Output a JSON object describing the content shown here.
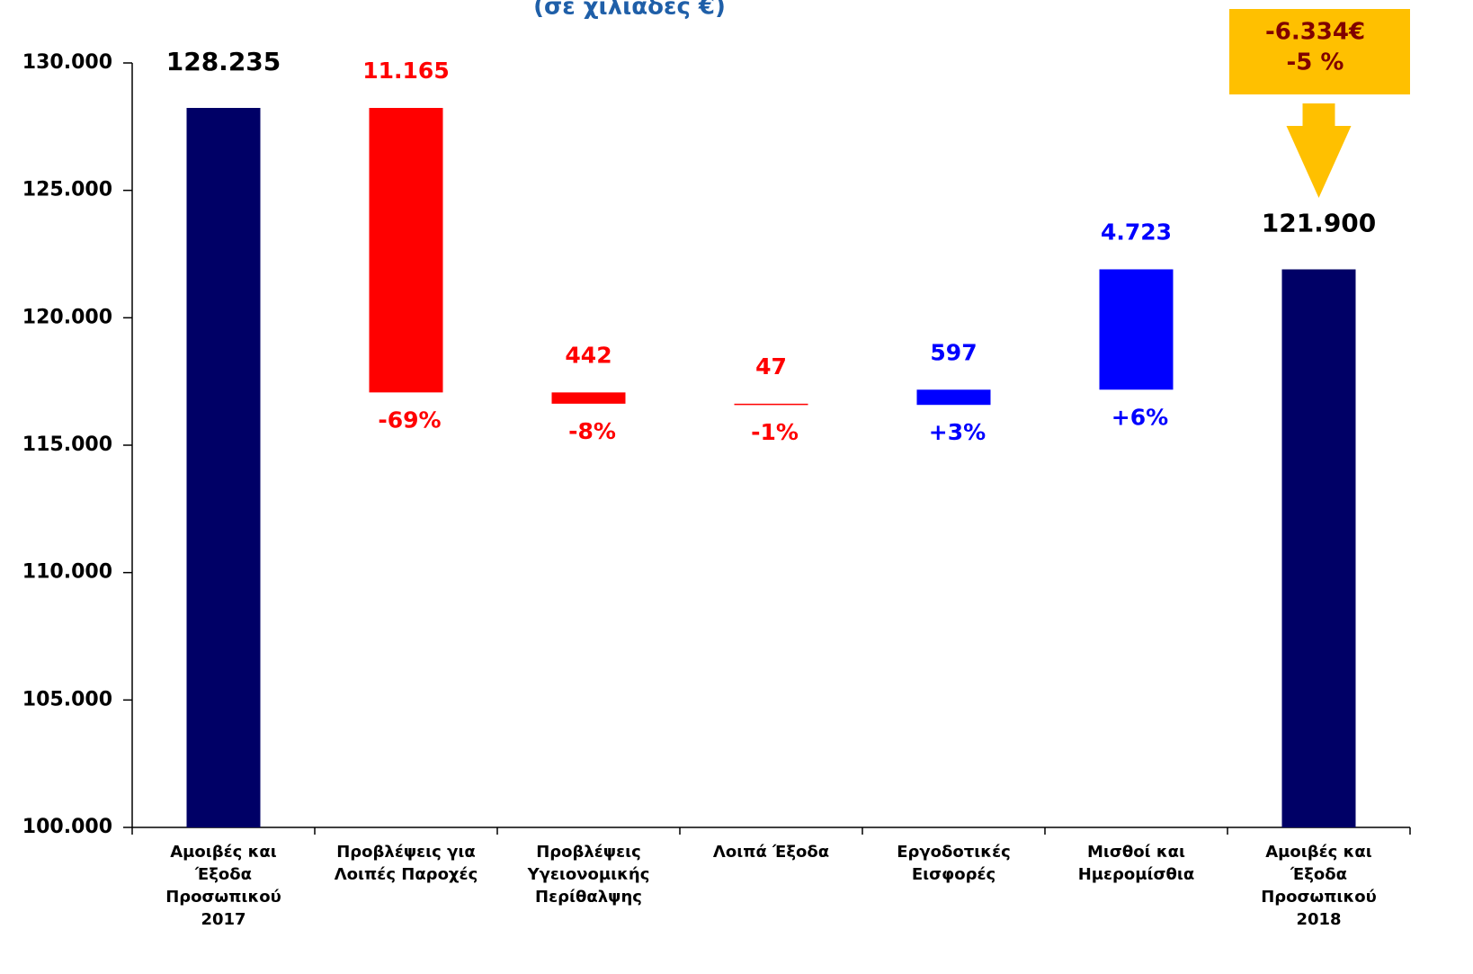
{
  "chart_data": {
    "type": "waterfall",
    "subtitle": "(σε χιλιάδες €)",
    "categories": [
      [
        "Αμοιβές και",
        "Έξοδα",
        "Προσωπικού",
        "2017"
      ],
      [
        "Προβλέψεις για",
        "Λοιπές Παροχές"
      ],
      [
        "Προβλέψεις",
        "Υγειονομικής",
        "Περίθαλψης"
      ],
      [
        "Λοιπά Έξοδα"
      ],
      [
        "Εργοδοτικές",
        "Εισφορές"
      ],
      [
        "Μισθοί και",
        "Ημερομίσθια"
      ],
      [
        "Αμοιβές και",
        "Έξοδα",
        "Προσωπικού",
        "2018"
      ]
    ],
    "values": [
      128235,
      -11165,
      -442,
      -47,
      597,
      4723,
      121900
    ],
    "value_labels": [
      "128.235",
      "11.165",
      "442",
      "47",
      "597",
      "4.723",
      "121.900"
    ],
    "percent_labels": [
      null,
      "-69%",
      "-8%",
      "-1%",
      "+3%",
      "+6%",
      null
    ],
    "colors": [
      "#000066",
      "#ff0000",
      "#ff0000",
      "#ff0000",
      "#0000ff",
      "#0000ff",
      "#000066"
    ],
    "label_colors": [
      "#000000",
      "#ff0000",
      "#ff0000",
      "#ff0000",
      "#0000ff",
      "#0000ff",
      "#000000"
    ],
    "ylim": [
      100000,
      130000
    ],
    "yticks": [
      {
        "value": 100000,
        "label": "100.000"
      },
      {
        "value": 105000,
        "label": "105.000"
      },
      {
        "value": 110000,
        "label": "110.000"
      },
      {
        "value": 115000,
        "label": "115.000"
      },
      {
        "value": 120000,
        "label": "120.000"
      },
      {
        "value": 125000,
        "label": "125.000"
      },
      {
        "value": 130000,
        "label": "130.000"
      }
    ],
    "callout": [
      "-6.334€",
      "-5 %"
    ],
    "callout_color": "#ffc000",
    "callout_text_color": "#800000"
  }
}
